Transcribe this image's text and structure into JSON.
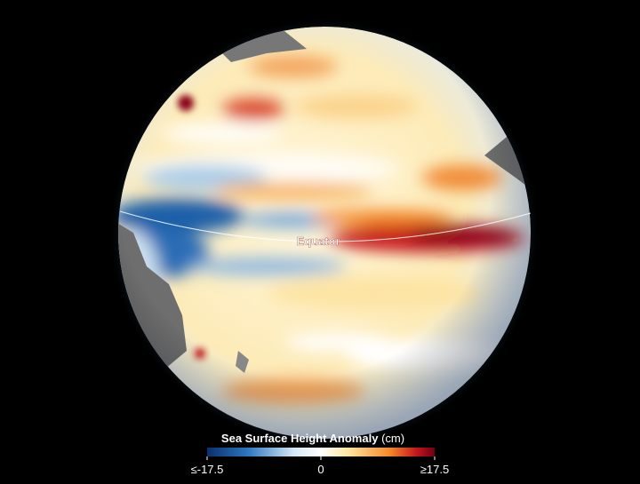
{
  "map": {
    "equator_label": "Equator"
  },
  "legend": {
    "title": "Sea Surface Height Anomaly",
    "unit": "(cm)",
    "range": [
      -17.5,
      17.5
    ],
    "ticks": [
      {
        "value": -17.5,
        "label": "≤-17.5"
      },
      0,
      {
        "value": 17.5,
        "label": "≥17.5"
      }
    ]
  }
}
